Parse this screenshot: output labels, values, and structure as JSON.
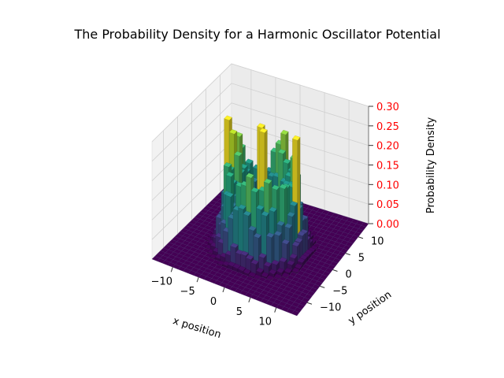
{
  "chart_data": {
    "type": "bar3d",
    "title": "The Probability Density for a Harmonic Oscillator Potential",
    "xlabel": "x position",
    "ylabel": "y position",
    "zlabel": "Probability Density",
    "xlim": [
      -14,
      14
    ],
    "ylim": [
      -14,
      14
    ],
    "zlim": [
      0,
      0.3
    ],
    "x_ticks": [
      -10,
      -5,
      0,
      5,
      10
    ],
    "y_ticks": [
      -10,
      -5,
      0,
      5,
      10
    ],
    "z_ticks": [
      "0.00",
      "0.05",
      "0.10",
      "0.15",
      "0.20",
      "0.25",
      "0.30"
    ],
    "x_tick_labels": [
      "−10",
      "−5",
      "0",
      "5",
      "10"
    ],
    "y_tick_labels": [
      "−10",
      "−5",
      "0",
      "5",
      "10"
    ],
    "z_tick_color": "#ff0000",
    "colormap": "viridis",
    "grid": true,
    "grid_range": [
      -14,
      14
    ],
    "bar_width": 1,
    "density_model": {
      "radius_max": 9.5,
      "ring_radius": 5.5,
      "ring_width": 3.0,
      "ring_peak": 0.22,
      "center_peak": 0.12,
      "spike_peak": 0.3
    }
  }
}
